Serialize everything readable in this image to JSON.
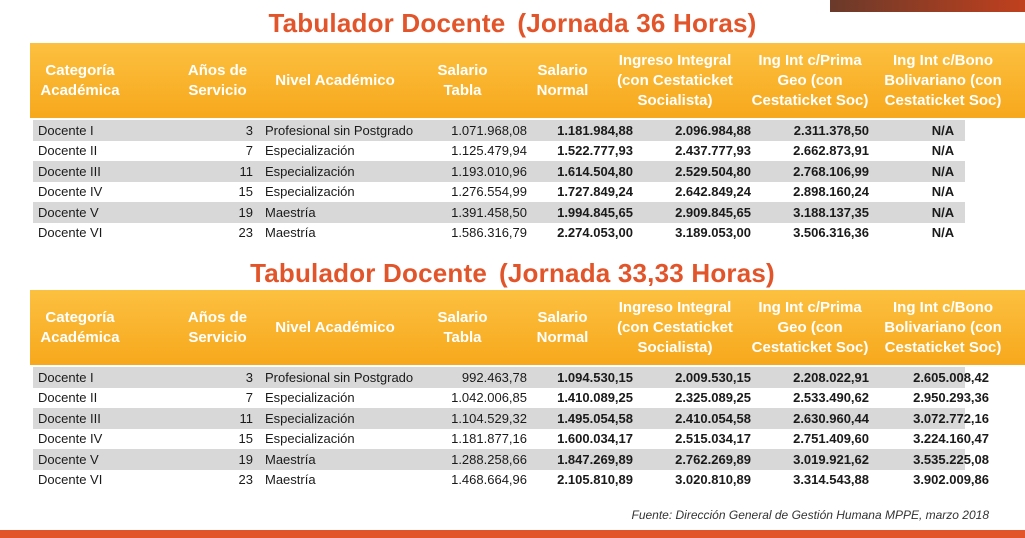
{
  "section1": {
    "title_main": "Tabulador Docente",
    "title_sub": "(Jornada 36 Horas)",
    "headers": {
      "cat": [
        "Categoría",
        "Académica"
      ],
      "anos": [
        "Años de",
        "Servicio"
      ],
      "nivel": [
        "Nivel Académico"
      ],
      "tabla": [
        "Salario",
        "Tabla"
      ],
      "normal": [
        "Salario",
        "Normal"
      ],
      "ingreso": [
        "Ingreso Integral",
        "(con Cestaticket",
        "Socialista)"
      ],
      "geo": [
        "Ing Int c/Prima",
        "Geo (con",
        "Cestaticket Soc)"
      ],
      "bono": [
        "Ing Int c/Bono",
        "Bolivariano (con",
        "Cestaticket Soc)"
      ]
    },
    "rows": [
      {
        "cat": "Docente I",
        "anos": "3",
        "nivel": "Profesional sin Postgrado",
        "tabla": "1.071.968,08",
        "normal": "1.181.984,88",
        "ingreso": "2.096.984,88",
        "geo": "2.311.378,50",
        "bono": "N/A"
      },
      {
        "cat": "Docente II",
        "anos": "7",
        "nivel": "Especialización",
        "tabla": "1.125.479,94",
        "normal": "1.522.777,93",
        "ingreso": "2.437.777,93",
        "geo": "2.662.873,91",
        "bono": "N/A"
      },
      {
        "cat": "Docente III",
        "anos": "11",
        "nivel": "Especialización",
        "tabla": "1.193.010,96",
        "normal": "1.614.504,80",
        "ingreso": "2.529.504,80",
        "geo": "2.768.106,99",
        "bono": "N/A"
      },
      {
        "cat": "Docente IV",
        "anos": "15",
        "nivel": "Especialización",
        "tabla": "1.276.554,99",
        "normal": "1.727.849,24",
        "ingreso": "2.642.849,24",
        "geo": "2.898.160,24",
        "bono": "N/A"
      },
      {
        "cat": "Docente V",
        "anos": "19",
        "nivel": "Maestría",
        "tabla": "1.391.458,50",
        "normal": "1.994.845,65",
        "ingreso": "2.909.845,65",
        "geo": "3.188.137,35",
        "bono": "N/A"
      },
      {
        "cat": "Docente VI",
        "anos": "23",
        "nivel": "Maestría",
        "tabla": "1.586.316,79",
        "normal": "2.274.053,00",
        "ingreso": "3.189.053,00",
        "geo": "3.506.316,36",
        "bono": "N/A"
      }
    ]
  },
  "section2": {
    "title_main": "Tabulador Docente",
    "title_sub": "(Jornada 33,33 Horas)",
    "headers": {
      "cat": [
        "Categoría",
        "Académica"
      ],
      "anos": [
        "Años de",
        "Servicio"
      ],
      "nivel": [
        "Nivel Académico"
      ],
      "tabla": [
        "Salario",
        "Tabla"
      ],
      "normal": [
        "Salario",
        "Normal"
      ],
      "ingreso": [
        "Ingreso Integral",
        "(con Cestaticket",
        "Socialista)"
      ],
      "geo": [
        "Ing Int c/Prima",
        "Geo (con",
        "Cestaticket Soc)"
      ],
      "bono": [
        "Ing Int c/Bono",
        "Bolivariano (con",
        "Cestaticket Soc)"
      ]
    },
    "rows": [
      {
        "cat": "Docente I",
        "anos": "3",
        "nivel": "Profesional sin Postgrado",
        "tabla": "992.463,78",
        "normal": "1.094.530,15",
        "ingreso": "2.009.530,15",
        "geo": "2.208.022,91",
        "bono": "2.605.008,42"
      },
      {
        "cat": "Docente II",
        "anos": "7",
        "nivel": "Especialización",
        "tabla": "1.042.006,85",
        "normal": "1.410.089,25",
        "ingreso": "2.325.089,25",
        "geo": "2.533.490,62",
        "bono": "2.950.293,36"
      },
      {
        "cat": "Docente III",
        "anos": "11",
        "nivel": "Especialización",
        "tabla": "1.104.529,32",
        "normal": "1.495.054,58",
        "ingreso": "2.410.054,58",
        "geo": "2.630.960,44",
        "bono": "3.072.772,16"
      },
      {
        "cat": "Docente IV",
        "anos": "15",
        "nivel": "Especialización",
        "tabla": "1.181.877,16",
        "normal": "1.600.034,17",
        "ingreso": "2.515.034,17",
        "geo": "2.751.409,60",
        "bono": "3.224.160,47"
      },
      {
        "cat": "Docente V",
        "anos": "19",
        "nivel": "Maestría",
        "tabla": "1.288.258,66",
        "normal": "1.847.269,89",
        "ingreso": "2.762.269,89",
        "geo": "3.019.921,62",
        "bono": "3.535.225,08"
      },
      {
        "cat": "Docente VI",
        "anos": "23",
        "nivel": "Maestría",
        "tabla": "1.468.664,96",
        "normal": "2.105.810,89",
        "ingreso": "3.020.810,89",
        "geo": "3.314.543,88",
        "bono": "3.902.009,86"
      }
    ]
  },
  "source": "Fuente: Dirección General de Gestión Humana MPPE, marzo 2018",
  "colors": {
    "title": "#e2552a",
    "header_top": "#fcc040",
    "header_bottom": "#f7a81c",
    "row_shade": "#d8d8d8",
    "footer_bar": "#e2552a"
  }
}
